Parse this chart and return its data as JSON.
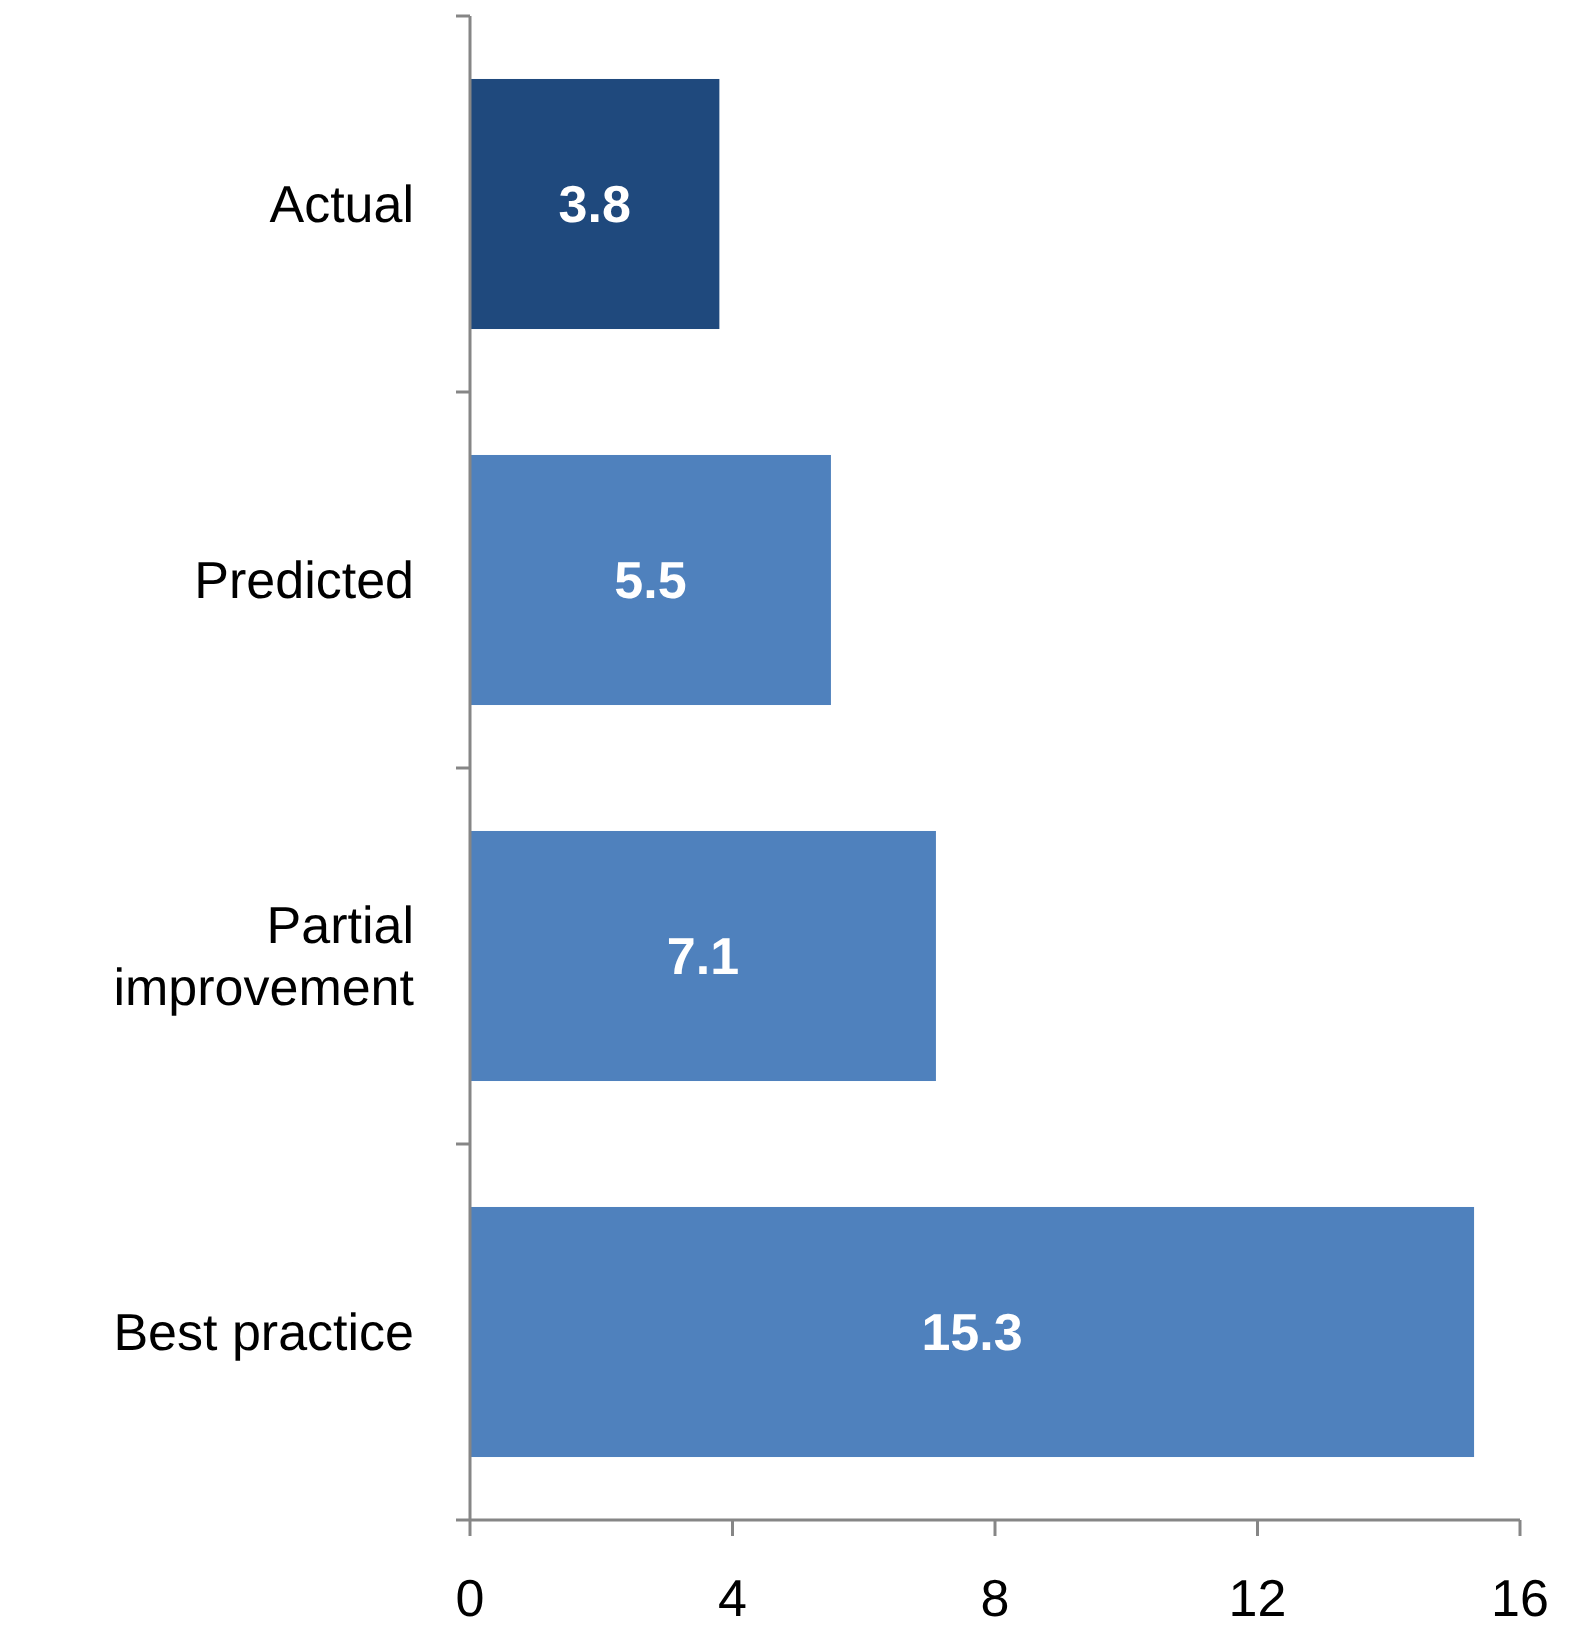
{
  "chart_data": {
    "type": "bar",
    "orientation": "horizontal",
    "categories": [
      "Actual",
      "Predicted",
      "Partial improvement",
      "Best practice"
    ],
    "values": [
      3.8,
      5.5,
      7.1,
      15.3
    ],
    "colors": [
      "#1f497d",
      "#4f81bd",
      "#4f81bd",
      "#4f81bd"
    ],
    "xlim": [
      0,
      16
    ],
    "xticks": [
      0,
      4,
      8,
      12,
      16
    ],
    "data_labels": true,
    "grid": false
  }
}
